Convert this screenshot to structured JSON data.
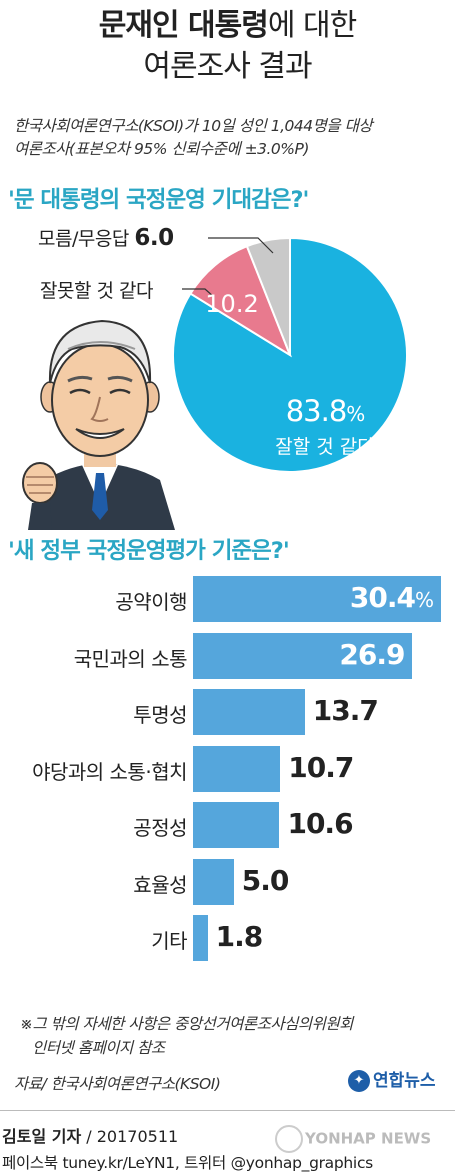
{
  "title": {
    "part1_bold": "문재인 대통령",
    "part1_rest": "에 대한",
    "line2": "여론조사 결과"
  },
  "survey": {
    "line1": "한국사회여론연구소(KSOI)가 10일 성인 1,044명을 대상",
    "line2": "여론조사(표본오차 95% 신뢰수준에 ±3.0%P)"
  },
  "chart_data": [
    {
      "type": "pie",
      "title": "'문 대통령의 국정운영 기대감은?'",
      "slices": [
        {
          "label": "잘할 것 같다",
          "value": 83.8,
          "display": "83.8",
          "unit": "%",
          "color": "#1ab2e0"
        },
        {
          "label": "잘못할 것 같다",
          "value": 10.2,
          "display": "10.2",
          "color": "#e87a8e"
        },
        {
          "label": "모름/무응답",
          "value": 6.0,
          "display": "6.0",
          "color": "#c9c9c9"
        }
      ]
    },
    {
      "type": "bar",
      "orientation": "horizontal",
      "title": "'새 정부 국정운영평가 기준은?'",
      "categories": [
        "공약이행",
        "국민과의 소통",
        "투명성",
        "야당과의 소통·협치",
        "공정성",
        "효율성",
        "기타"
      ],
      "values": [
        30.4,
        26.9,
        13.7,
        10.7,
        10.6,
        5.0,
        1.8
      ],
      "labels": [
        "30.4",
        "26.9",
        "13.7",
        "10.7",
        "10.6",
        "5.0",
        "1.8"
      ],
      "unit": "%",
      "color": "#55a6dc"
    }
  ],
  "note": {
    "line1": "※그 밖의 자세한 사항은 중앙선거여론조사심의위원회",
    "line2": "인터넷 홈페이지 참조"
  },
  "source": "자료/ 한국사회여론연구소(KSOI)",
  "logo": {
    "text": "연합뉴스"
  },
  "credit": {
    "reporter": "김토일 기자",
    "date": "/ 20170511"
  },
  "sns": "페이스북 tuney.kr/LeYN1, 트위터 @yonhap_graphics",
  "watermark": "YONHAP NEWS"
}
